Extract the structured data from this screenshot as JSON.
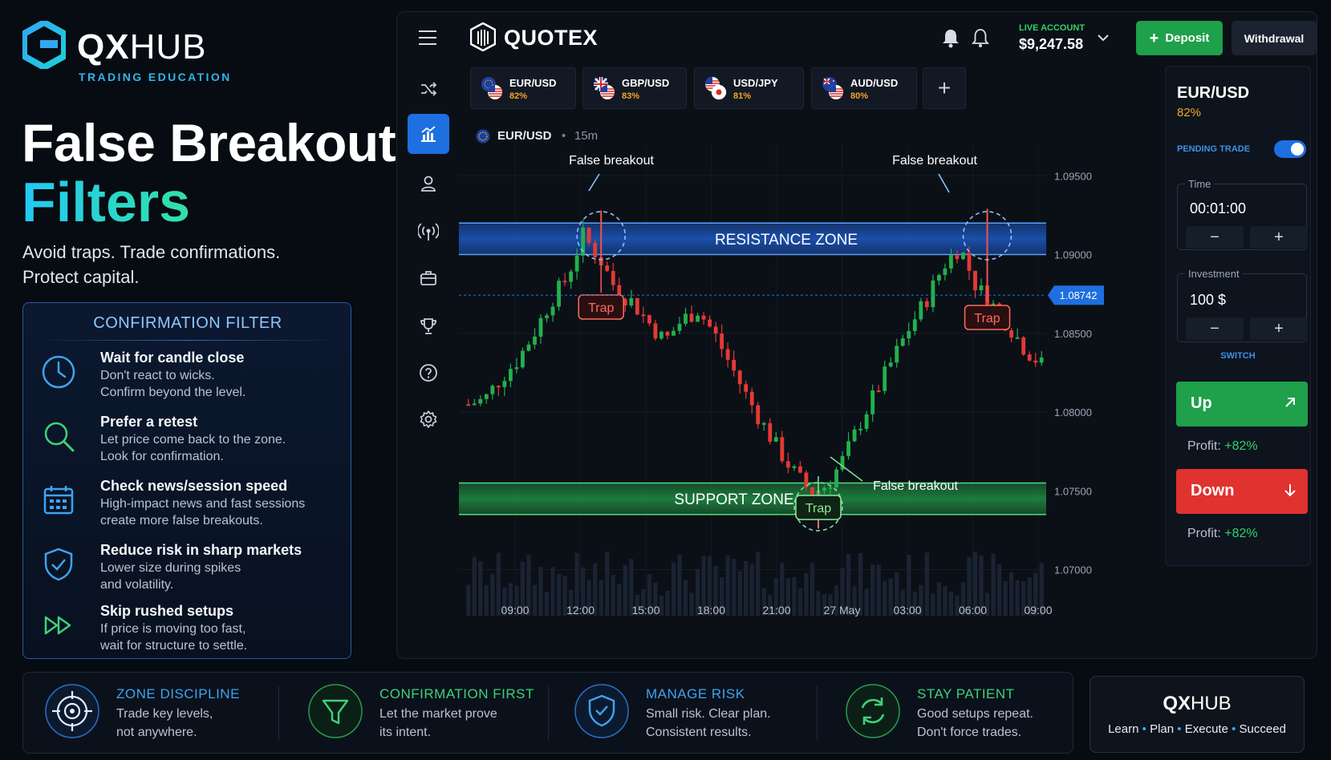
{
  "brand": {
    "name_bold": "QX",
    "name_light": "HUB",
    "subtitle": "TRADING EDUCATION"
  },
  "headline": {
    "line1": "False Breakout",
    "line2": "Filters",
    "tagline1": "Avoid traps. Trade confirmations.",
    "tagline2": "Protect capital."
  },
  "filter_panel": {
    "title": "CONFIRMATION FILTER",
    "items": [
      {
        "heading": "Wait for candle close",
        "line1": "Don't react to wicks.",
        "line2": "Confirm beyond the level.",
        "icon": "clock-icon"
      },
      {
        "heading": "Prefer a retest",
        "line1": "Let price come back to the zone.",
        "line2": "Look for confirmation.",
        "icon": "search-icon"
      },
      {
        "heading": "Check news/session speed",
        "line1": "High-impact news and fast sessions",
        "line2": "create more false breakouts.",
        "icon": "calendar-icon"
      },
      {
        "heading": "Reduce risk in sharp markets",
        "line1": "Lower size during spikes",
        "line2": "and volatility.",
        "icon": "shield-check-icon"
      },
      {
        "heading": "Skip rushed setups",
        "line1": "If price is moving too fast,",
        "line2": "wait for structure to settle.",
        "icon": "fast-forward-icon"
      }
    ]
  },
  "app": {
    "name": "QUOTEX",
    "account": {
      "label": "LIVE ACCOUNT",
      "balance": "$9,247.58"
    },
    "deposit_label": "Deposit",
    "withdraw_label": "Withdrawal",
    "tabs": [
      {
        "pair": "EUR/USD",
        "payout": "82%"
      },
      {
        "pair": "GBP/USD",
        "payout": "83%"
      },
      {
        "pair": "USD/JPY",
        "payout": "81%"
      },
      {
        "pair": "AUD/USD",
        "payout": "80%"
      }
    ],
    "add_tab": "+",
    "symbol": {
      "pair": "EUR/USD",
      "sep": "•",
      "timeframe": "15m"
    },
    "sidebar_icons": [
      "shuffle-icon",
      "chart-icon",
      "user-icon",
      "signal-icon",
      "briefcase-icon",
      "trophy-icon",
      "help-icon",
      "settings-icon"
    ]
  },
  "trade_panel": {
    "pair": "EUR/USD",
    "payout": "82%",
    "pending_label": "PENDING TRADE",
    "pending_on": true,
    "time": {
      "label": "Time",
      "value": "00:01:00"
    },
    "investment": {
      "label": "Investment",
      "value": "100 $"
    },
    "minus": "−",
    "plus": "+",
    "switch_label": "SWITCH",
    "up_label": "Up",
    "down_label": "Down",
    "profit_label": "Profit:",
    "up_profit": "+82%",
    "down_profit": "+82%"
  },
  "chart_data": {
    "type": "candlestick",
    "x_ticks": [
      "09:00",
      "12:00",
      "15:00",
      "18:00",
      "21:00",
      "27 May",
      "03:00",
      "06:00",
      "09:00"
    ],
    "y_ticks": [
      "1.09500",
      "1.09000",
      "1.08500",
      "1.08000",
      "1.07500",
      "1.07000"
    ],
    "ylim": [
      1.0685,
      1.097
    ],
    "current_price": "1.08742",
    "resistance_zone": {
      "label": "RESISTANCE ZONE",
      "low": 1.09,
      "high": 1.092
    },
    "support_zone": {
      "label": "SUPPORT ZONE",
      "low": 1.0735,
      "high": 1.0755
    },
    "annotations": {
      "false_breakout": "False breakout",
      "trap": "Trap"
    },
    "close_path": [
      1.0805,
      1.0808,
      1.0822,
      1.0833,
      1.085,
      1.087,
      1.0885,
      1.0912,
      1.0898,
      1.0878,
      1.087,
      1.0857,
      1.0845,
      1.0858,
      1.0865,
      1.085,
      1.083,
      1.081,
      1.0792,
      1.0775,
      1.076,
      1.0748,
      1.0755,
      1.0772,
      1.0795,
      1.0815,
      1.0835,
      1.0855,
      1.0872,
      1.0893,
      1.0905,
      1.088,
      1.0868,
      1.0855,
      1.084,
      1.083
    ]
  },
  "bottom_bar": [
    {
      "title": "ZONE DISCIPLINE",
      "line1": "Trade key levels,",
      "line2": "not anywhere.",
      "color": "#3fa3f0",
      "icon": "target-icon"
    },
    {
      "title": "CONFIRMATION FIRST",
      "line1": "Let the market prove",
      "line2": "its intent.",
      "color": "#3fd17a",
      "icon": "filter-icon"
    },
    {
      "title": "MANAGE RISK",
      "line1": "Small risk. Clear plan.",
      "line2": "Consistent results.",
      "color": "#3fa3f0",
      "icon": "shield-check-icon"
    },
    {
      "title": "STAY PATIENT",
      "line1": "Good setups repeat.",
      "line2": "Don't force trades.",
      "color": "#3fd17a",
      "icon": "refresh-icon"
    }
  ],
  "card": {
    "name_bold": "QX",
    "name_light": "HUB",
    "steps": [
      "Learn",
      "Plan",
      "Execute",
      "Succeed"
    ],
    "sep": "•"
  }
}
